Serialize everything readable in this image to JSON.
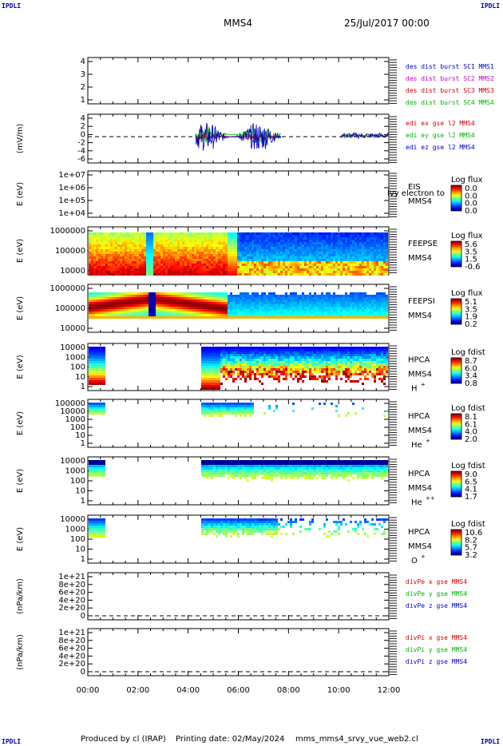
{
  "header": {
    "corner_label": "IPDLI",
    "spacecraft": "MMS4",
    "datetime": "25/Jul/2017 00:00"
  },
  "footer": {
    "produced_by": "Produced by cl (IRAP)",
    "printing_date": "Printing date: 02/May/2024",
    "script_name": "mms_mms4_srvy_vue_web2.cl"
  },
  "chart_data": {
    "type": "multi-panel time series and spectrograms",
    "x_tick_labels": [
      "00:00",
      "02:00",
      "04:00",
      "06:00",
      "08:00",
      "10:00",
      "12:00"
    ],
    "xlim_hours": [
      0,
      12
    ],
    "panels": [
      {
        "id": "des-dist",
        "type": "line",
        "ylabel": "",
        "y_ticks": [
          "4",
          "3",
          "2",
          "1"
        ],
        "legend": [
          {
            "label": "des dist burst SC1 MMS1",
            "color": "#0000c8"
          },
          {
            "label": "des dist burst SC2 MMS2",
            "color": "#c800c8"
          },
          {
            "label": "des dist burst SC3 MMS3",
            "color": "#d40000"
          },
          {
            "label": "des dist burst SC4 MMS4",
            "color": "#00b400"
          }
        ]
      },
      {
        "id": "edi-e",
        "type": "line",
        "ylabel": "(mV/m)",
        "y_ticks": [
          "4",
          "2",
          "0",
          "-2",
          "-4",
          "-6"
        ],
        "ylim": [
          -6,
          5
        ],
        "data_interval_hours": [
          4.3,
          12.0
        ],
        "legend": [
          {
            "label": "edi ex gse l2 MMS4",
            "color": "#d40000"
          },
          {
            "label": "edi ey gse l2 MMS4",
            "color": "#00b400"
          },
          {
            "label": "edi ez gse l2 MMS4",
            "color": "#0000c8"
          }
        ]
      },
      {
        "id": "eis",
        "type": "heatmap",
        "ylabel": "E (eV)",
        "y_ticks": [
          "1e+07",
          "1e+06",
          "1e+05",
          "1e+04"
        ],
        "instrument": "EIS",
        "sub_label": "MMS4",
        "overlay_text": "lvy electron to",
        "colorbar_title": "Log flux",
        "colorbar_ticks": [
          "0.0",
          "0.0",
          "0.0",
          "0.0"
        ]
      },
      {
        "id": "feepse",
        "type": "heatmap",
        "ylabel": "E (eV)",
        "y_ticks": [
          "1000000",
          "100000",
          "10000"
        ],
        "instrument": "FEEPSE",
        "sub_label": "MMS4",
        "colorbar_title": "Log flux",
        "colorbar_ticks": [
          "5.6",
          "3.5",
          "1.5",
          "-0.6"
        ]
      },
      {
        "id": "feepsi",
        "type": "heatmap",
        "ylabel": "E (eV)",
        "y_ticks": [
          "1000000",
          "100000",
          "10000"
        ],
        "instrument": "FEEPSI",
        "sub_label": "MMS4",
        "colorbar_title": "Log flux",
        "colorbar_ticks": [
          "5.1",
          "3.5",
          "1.9",
          "0.2"
        ]
      },
      {
        "id": "hpca-h",
        "type": "heatmap",
        "ylabel": "E (eV)",
        "y_ticks": [
          "10000",
          "1000",
          "100",
          "10",
          "1"
        ],
        "instrument": "HPCA",
        "sub_label": "MMS4",
        "species": "H",
        "charge": "+",
        "colorbar_title": "Log fdist",
        "colorbar_ticks": [
          "8.7",
          "6.0",
          "3.4",
          "0.8"
        ]
      },
      {
        "id": "hpca-he",
        "type": "heatmap",
        "ylabel": "E (eV)",
        "y_ticks": [
          "100000",
          "10000",
          "1000",
          "100",
          "10",
          "1"
        ],
        "instrument": "HPCA",
        "sub_label": "MMS4",
        "species": "He",
        "charge": "+",
        "colorbar_title": "Log fdist",
        "colorbar_ticks": [
          "8.1",
          "6.1",
          "4.0",
          "2.0"
        ]
      },
      {
        "id": "hpca-hepp",
        "type": "heatmap",
        "ylabel": "E (eV)",
        "y_ticks": [
          "10000",
          "1000",
          "100",
          "10",
          "1"
        ],
        "instrument": "HPCA",
        "sub_label": "MMS4",
        "species": "He",
        "charge": "++",
        "colorbar_title": "Log fdist",
        "colorbar_ticks": [
          "9.0",
          "6.5",
          "4.1",
          "1.7"
        ]
      },
      {
        "id": "hpca-o",
        "type": "heatmap",
        "ylabel": "E (eV)",
        "y_ticks": [
          "10000",
          "1000",
          "100",
          "10",
          "1"
        ],
        "instrument": "HPCA",
        "sub_label": "MMS4",
        "species": "O",
        "charge": "+",
        "colorbar_title": "Log fdist",
        "colorbar_ticks": [
          "10.6",
          "8.2",
          "5.7",
          "3.2"
        ]
      },
      {
        "id": "divpe",
        "type": "line",
        "ylabel": "(nPa/km)",
        "y_ticks": [
          "1e+21",
          "8e+20",
          "6e+20",
          "4e+20",
          "2e+20",
          "0"
        ],
        "legend": [
          {
            "label": "divPe x gse MMS4",
            "color": "#d40000"
          },
          {
            "label": "divPe y gse MMS4",
            "color": "#00b400"
          },
          {
            "label": "divPe z gse MMS4",
            "color": "#0000c8"
          }
        ]
      },
      {
        "id": "divpi",
        "type": "line",
        "ylabel": "(nPa/km)",
        "y_ticks": [
          "1e+21",
          "8e+20",
          "6e+20",
          "4e+20",
          "2e+20",
          "0"
        ],
        "legend": [
          {
            "label": "divPi x gse MMS4",
            "color": "#d40000"
          },
          {
            "label": "divPi y gse MMS4",
            "color": "#00b400"
          },
          {
            "label": "divPi z gse MMS4",
            "color": "#0000c8"
          }
        ]
      }
    ]
  }
}
